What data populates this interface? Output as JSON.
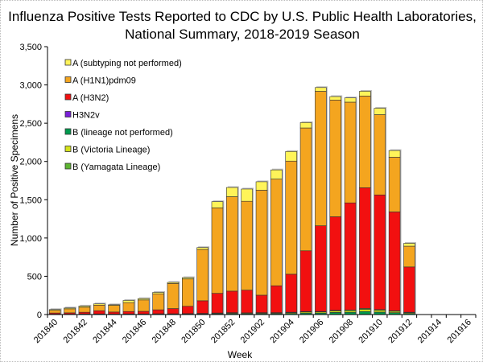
{
  "chart_data": {
    "type": "bar",
    "stacked": true,
    "title": [
      "Influenza Positive Tests Reported to CDC by U.S. Public Health Laboratories,",
      "National Summary, 2018-2019 Season"
    ],
    "xlabel": "Week",
    "ylabel": "Number of Positive Specimens",
    "ylim": [
      0,
      3500
    ],
    "yticks": [
      "0",
      "500",
      "1,000",
      "1,500",
      "2,000",
      "2,500",
      "3,000",
      "3,500"
    ],
    "grid": false,
    "legend_position": "top-left",
    "categories": [
      "201840",
      "201841",
      "201842",
      "201843",
      "201844",
      "201845",
      "201846",
      "201847",
      "201848",
      "201849",
      "201850",
      "201851",
      "201852",
      "201901",
      "201902",
      "201903",
      "201904",
      "201905",
      "201906",
      "201907",
      "201908",
      "201909",
      "201910",
      "201911",
      "201912",
      "201913",
      "201914",
      "201915",
      "201916"
    ],
    "xtick_labels": [
      "201840",
      "201842",
      "201844",
      "201846",
      "201848",
      "201850",
      "201852",
      "201902",
      "201904",
      "201906",
      "201908",
      "201910",
      "201912",
      "201914",
      "201916"
    ],
    "series": [
      {
        "name": "B (lineage not performed)",
        "color": "#009A4E",
        "values": [
          3,
          3,
          4,
          4,
          3,
          4,
          4,
          5,
          5,
          6,
          8,
          10,
          12,
          11,
          12,
          12,
          15,
          20,
          20,
          28,
          30,
          40,
          32,
          25,
          15,
          null,
          null,
          null,
          null
        ]
      },
      {
        "name": "B (Victoria Lineage)",
        "color": "#D4E21A",
        "values": [
          1,
          1,
          3,
          3,
          2,
          3,
          3,
          4,
          4,
          4,
          5,
          7,
          9,
          8,
          9,
          9,
          10,
          14,
          14,
          19,
          21,
          28,
          23,
          18,
          10,
          null,
          null,
          null,
          null
        ]
      },
      {
        "name": "B (Yamagata Lineage)",
        "color": "#5DB531",
        "values": [
          1,
          1,
          1,
          1,
          1,
          1,
          1,
          1,
          1,
          2,
          2,
          3,
          4,
          3,
          4,
          4,
          5,
          6,
          6,
          8,
          9,
          12,
          10,
          7,
          5,
          null,
          null,
          null,
          null
        ]
      },
      {
        "name": "H3N2v",
        "color": "#7A1FD8",
        "values": [
          0,
          0,
          0,
          0,
          0,
          0,
          0,
          0,
          0,
          0,
          0,
          0,
          0,
          0,
          0,
          0,
          0,
          0,
          0,
          0,
          0,
          0,
          0,
          0,
          0,
          null,
          null,
          null,
          null
        ]
      },
      {
        "name": "A (H3N2)",
        "color": "#F21010",
        "values": [
          15,
          17,
          22,
          42,
          27,
          32,
          34,
          52,
          68,
          96,
          165,
          257,
          281,
          297,
          228,
          351,
          497,
          793,
          1120,
          1223,
          1399,
          1577,
          1498,
          1291,
          592,
          null,
          null,
          null,
          null
        ]
      },
      {
        "name": "A (H1N1)pdm09",
        "color": "#F4A51F",
        "values": [
          35,
          53,
          66,
          73,
          87,
          116,
          149,
          209,
          328,
          357,
          671,
          1117,
          1234,
          1161,
          1372,
          1394,
          1478,
          1605,
          1757,
          1525,
          1316,
          1198,
          1049,
          715,
          271,
          null,
          null,
          null,
          null
        ]
      },
      {
        "name": "A (subtyping not performed)",
        "color": "#FFF459",
        "values": [
          10,
          11,
          15,
          16,
          8,
          28,
          17,
          18,
          14,
          17,
          24,
          81,
          120,
          160,
          110,
          120,
          125,
          70,
          49,
          45,
          56,
          62,
          83,
          87,
          37,
          null,
          null,
          null,
          null
        ]
      }
    ],
    "legend_order": [
      "A (subtyping not performed)",
      "A (H1N1)pdm09",
      "A (H3N2)",
      "H3N2v",
      "B (lineage not performed)",
      "B (Victoria Lineage)",
      "B (Yamagata Lineage)"
    ]
  }
}
